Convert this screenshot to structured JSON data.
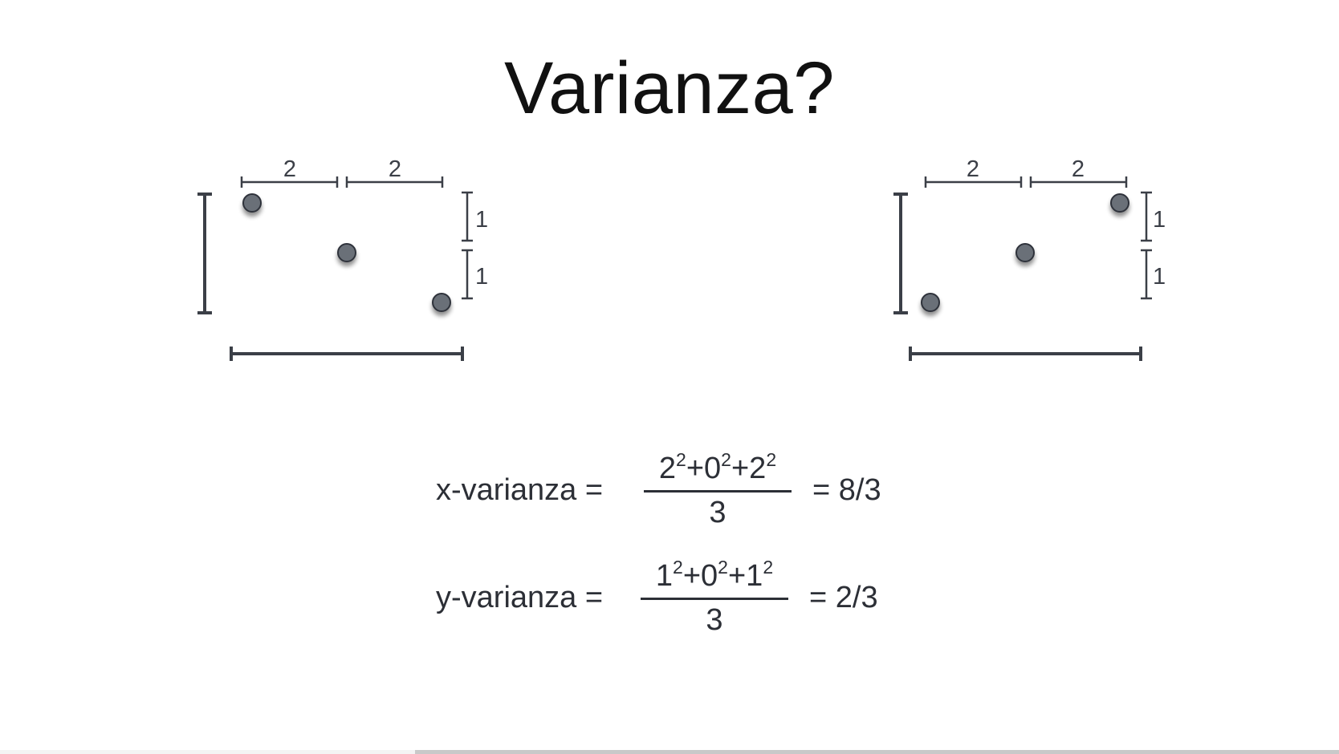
{
  "slide": {
    "title": "Varianza?"
  },
  "diagrams": [
    {
      "id": "left",
      "x_gaps": [
        "2",
        "2"
      ],
      "y_gaps": [
        "1",
        "1"
      ],
      "points_order": "descending"
    },
    {
      "id": "right",
      "x_gaps": [
        "2",
        "2"
      ],
      "y_gaps": [
        "1",
        "1"
      ],
      "points_order": "ascending"
    }
  ],
  "formulas": {
    "x": {
      "lhs": "x-varianza =",
      "terms": [
        {
          "base": "2",
          "exp": "2",
          "op": "+"
        },
        {
          "base": "0",
          "exp": "2",
          "op": "+"
        },
        {
          "base": "2",
          "exp": "2",
          "op": ""
        }
      ],
      "denominator": "3",
      "rhs": "= 8/3"
    },
    "y": {
      "lhs": "y-varianza =",
      "terms": [
        {
          "base": "1",
          "exp": "2",
          "op": "+"
        },
        {
          "base": "0",
          "exp": "2",
          "op": "+"
        },
        {
          "base": "1",
          "exp": "2",
          "op": ""
        }
      ],
      "denominator": "3",
      "rhs": "= 2/3"
    }
  },
  "colors": {
    "point_fill": "#6b7078",
    "point_stroke": "#2f333a",
    "line": "#3b3f47",
    "text": "#2c2f36",
    "progress_played": "#c9c9c9"
  },
  "progress": {
    "played_fraction": 0.31
  }
}
